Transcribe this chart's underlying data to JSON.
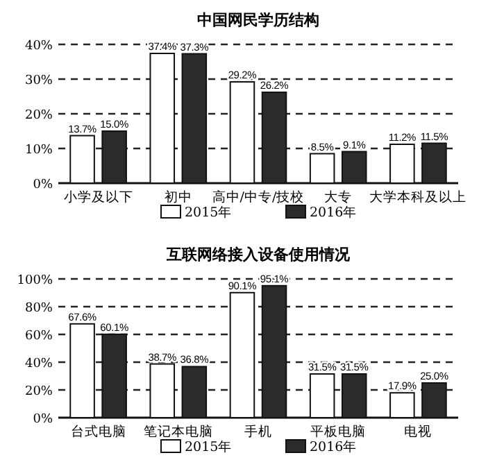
{
  "chart_data": [
    {
      "type": "bar",
      "title": "中国网民学历结构",
      "categories": [
        "小学及以下",
        "初中",
        "高中/中专/技校",
        "大专",
        "大学本科及以上"
      ],
      "series": [
        {
          "name": "2015年",
          "color": "#ffffff",
          "values": [
            13.7,
            37.4,
            29.2,
            8.5,
            11.2
          ],
          "value_labels": [
            "13.7%",
            "37.4%",
            "29.2%",
            "8.5%",
            "11.2%"
          ]
        },
        {
          "name": "2016年",
          "color": "#2b2b2b",
          "values": [
            15.0,
            37.3,
            26.2,
            9.1,
            11.5
          ],
          "value_labels": [
            "15.0%",
            "37.3%",
            "26.2%",
            "9.1%",
            "11.5%"
          ]
        }
      ],
      "ylim": [
        0,
        40
      ],
      "yticks": [
        {
          "value": 0,
          "label": "0%"
        },
        {
          "value": 10,
          "label": "10%"
        },
        {
          "value": 20,
          "label": "20%"
        },
        {
          "value": 30,
          "label": "30%"
        },
        {
          "value": 40,
          "label": "40%"
        }
      ],
      "grid": "y",
      "legend": "bottom"
    },
    {
      "type": "bar",
      "title": "互联网络接入设备使用情况",
      "categories": [
        "台式电脑",
        "笔记本电脑",
        "手机",
        "平板电脑",
        "电视"
      ],
      "series": [
        {
          "name": "2015年",
          "color": "#ffffff",
          "values": [
            67.6,
            38.7,
            90.1,
            31.5,
            17.9
          ],
          "value_labels": [
            "67.6%",
            "38.7%",
            "90.1%",
            "31.5%",
            "17.9%"
          ]
        },
        {
          "name": "2016年",
          "color": "#2b2b2b",
          "values": [
            60.1,
            36.8,
            95.1,
            31.5,
            25.0
          ],
          "value_labels": [
            "60.1%",
            "36.8%",
            "95.1%",
            "31.5%",
            "25.0%"
          ]
        }
      ],
      "ylim": [
        0,
        100
      ],
      "yticks": [
        {
          "value": 0,
          "label": "0%"
        },
        {
          "value": 20,
          "label": "20%"
        },
        {
          "value": 40,
          "label": "40%"
        },
        {
          "value": 60,
          "label": "60%"
        },
        {
          "value": 80,
          "label": "80%"
        },
        {
          "value": 100,
          "label": "100%"
        }
      ],
      "grid": "y",
      "legend": "bottom"
    }
  ]
}
